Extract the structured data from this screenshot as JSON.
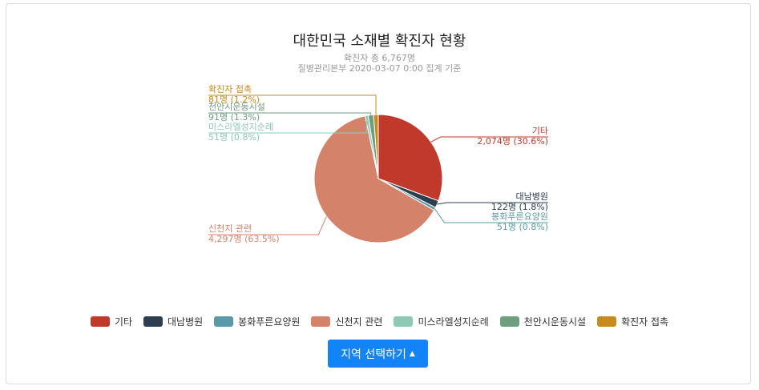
{
  "chart_data": {
    "type": "pie",
    "title": "대한민국 소재별 확진자 현황",
    "subtitle_lines": [
      "확진자 총 6,767명",
      "질병관리본부 2020-03-07 0:00 집계 기준"
    ],
    "slices": [
      {
        "name": "기타",
        "count": 2074,
        "count_label": "2,074명",
        "percent_label": "(30.6%)",
        "color": "#c0392b"
      },
      {
        "name": "대남병원",
        "count": 122,
        "count_label": "122명",
        "percent_label": "(1.8%)",
        "color": "#2c3e50"
      },
      {
        "name": "봉화푸른요양원",
        "count": 51,
        "count_label": "51명",
        "percent_label": "(0.8%)",
        "color": "#5a9aa8"
      },
      {
        "name": "신천지 관련",
        "count": 4297,
        "count_label": "4,297명",
        "percent_label": "(63.5%)",
        "color": "#d4826a"
      },
      {
        "name": "미스라엘성지순례",
        "count": 51,
        "count_label": "51명",
        "percent_label": "(0.8%)",
        "color": "#8ec9b5"
      },
      {
        "name": "천안시운동시설",
        "count": 91,
        "count_label": "91명",
        "percent_label": "(1.3%)",
        "color": "#6e9e80"
      },
      {
        "name": "확진자 접촉",
        "count": 81,
        "count_label": "81명",
        "percent_label": "(1.2%)",
        "color": "#c98a1e"
      }
    ],
    "legend_position": "bottom"
  },
  "region_button": {
    "label": "지역 선택하기"
  }
}
